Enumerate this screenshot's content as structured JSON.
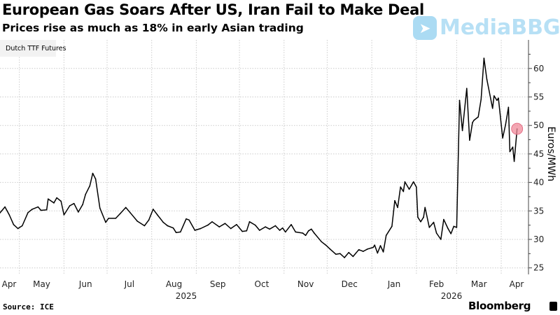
{
  "header": {
    "title": "European Gas Soars After US, Iran Fail to Make Deal",
    "subtitle": "Prices rise as much as 18% in early Asian trading"
  },
  "watermark": {
    "text": "MediaBBG",
    "icon": "telegram-plane-icon"
  },
  "footer": {
    "source": "Source: ICE",
    "brand": "Bloomberg"
  },
  "colors": {
    "line": "#000000",
    "highlight": "#f08a9a",
    "grid": "#cccccc",
    "legend_bg": "#f2f2f2"
  },
  "chart_data": {
    "type": "line",
    "title": "European Gas Soars After US, Iran Fail to Make Deal",
    "subtitle": "Prices rise as much as 18% in early Asian trading",
    "ylabel": "Euros/MWh",
    "xlabel": "",
    "ylim": [
      23,
      64
    ],
    "y_ticks": [
      25,
      30,
      35,
      40,
      45,
      50,
      55,
      60
    ],
    "y_axis_side": "right",
    "grid": true,
    "legend_placement": "top-left",
    "x_ticks": [
      "Apr",
      "May",
      "Jun",
      "Jul",
      "Aug",
      "Sep",
      "Oct",
      "Nov",
      "Dec",
      "Jan",
      "Feb",
      "Mar",
      "Apr"
    ],
    "x_years": [
      "2025",
      "2026"
    ],
    "highlight_point": {
      "date": "2026-04-12",
      "value": 49.4
    },
    "series": [
      {
        "name": "Dutch TTF Futures",
        "points": [
          [
            "2025-04-17",
            34.5
          ],
          [
            "2025-04-21",
            35.7
          ],
          [
            "2025-04-24",
            34.3
          ],
          [
            "2025-04-27",
            32.6
          ],
          [
            "2025-04-30",
            31.9
          ],
          [
            "2025-05-03",
            32.4
          ],
          [
            "2025-05-07",
            34.7
          ],
          [
            "2025-05-10",
            35.3
          ],
          [
            "2025-05-14",
            35.7
          ],
          [
            "2025-05-16",
            35.1
          ],
          [
            "2025-05-20",
            35.2
          ],
          [
            "2025-05-21",
            37.1
          ],
          [
            "2025-05-25",
            36.4
          ],
          [
            "2025-05-27",
            37.3
          ],
          [
            "2025-05-30",
            36.7
          ],
          [
            "2025-06-01",
            34.3
          ],
          [
            "2025-06-05",
            35.9
          ],
          [
            "2025-06-08",
            36.3
          ],
          [
            "2025-06-11",
            34.8
          ],
          [
            "2025-06-14",
            36.1
          ],
          [
            "2025-06-16",
            37.9
          ],
          [
            "2025-06-19",
            39.4
          ],
          [
            "2025-06-21",
            41.6
          ],
          [
            "2025-06-23",
            40.6
          ],
          [
            "2025-06-26",
            35.5
          ],
          [
            "2025-06-30",
            33.0
          ],
          [
            "2025-07-02",
            33.7
          ],
          [
            "2025-07-07",
            33.7
          ],
          [
            "2025-07-10",
            34.5
          ],
          [
            "2025-07-14",
            35.6
          ],
          [
            "2025-07-17",
            34.7
          ],
          [
            "2025-07-22",
            33.2
          ],
          [
            "2025-07-27",
            32.4
          ],
          [
            "2025-07-30",
            33.4
          ],
          [
            "2025-08-02",
            35.3
          ],
          [
            "2025-08-05",
            34.3
          ],
          [
            "2025-08-09",
            33.0
          ],
          [
            "2025-08-12",
            32.4
          ],
          [
            "2025-08-16",
            32.0
          ],
          [
            "2025-08-18",
            31.2
          ],
          [
            "2025-08-21",
            31.3
          ],
          [
            "2025-08-25",
            33.6
          ],
          [
            "2025-08-27",
            33.4
          ],
          [
            "2025-08-31",
            31.6
          ],
          [
            "2025-09-04",
            31.9
          ],
          [
            "2025-09-09",
            32.5
          ],
          [
            "2025-09-12",
            33.1
          ],
          [
            "2025-09-17",
            32.2
          ],
          [
            "2025-09-21",
            32.8
          ],
          [
            "2025-09-25",
            31.9
          ],
          [
            "2025-09-29",
            32.6
          ],
          [
            "2025-10-03",
            31.4
          ],
          [
            "2025-10-06",
            31.5
          ],
          [
            "2025-10-08",
            33.1
          ],
          [
            "2025-10-12",
            32.5
          ],
          [
            "2025-10-15",
            31.6
          ],
          [
            "2025-10-19",
            32.2
          ],
          [
            "2025-10-22",
            31.8
          ],
          [
            "2025-10-26",
            32.4
          ],
          [
            "2025-10-29",
            31.6
          ],
          [
            "2025-10-31",
            32.0
          ],
          [
            "2025-11-02",
            31.3
          ],
          [
            "2025-11-06",
            32.6
          ],
          [
            "2025-11-09",
            31.3
          ],
          [
            "2025-11-14",
            31.1
          ],
          [
            "2025-11-16",
            30.7
          ],
          [
            "2025-11-18",
            31.5
          ],
          [
            "2025-11-20",
            31.8
          ],
          [
            "2025-11-22",
            31.1
          ],
          [
            "2025-11-27",
            29.6
          ],
          [
            "2025-11-30",
            29.0
          ],
          [
            "2025-12-03",
            28.3
          ],
          [
            "2025-12-07",
            27.4
          ],
          [
            "2025-12-10",
            27.5
          ],
          [
            "2025-12-13",
            26.8
          ],
          [
            "2025-12-16",
            27.7
          ],
          [
            "2025-12-19",
            27.0
          ],
          [
            "2025-12-23",
            28.2
          ],
          [
            "2025-12-26",
            27.9
          ],
          [
            "2025-12-29",
            28.3
          ],
          [
            "2026-01-02",
            28.6
          ],
          [
            "2026-01-03",
            29.0
          ],
          [
            "2026-01-05",
            27.6
          ],
          [
            "2026-01-07",
            28.9
          ],
          [
            "2026-01-09",
            27.8
          ],
          [
            "2026-01-11",
            30.7
          ],
          [
            "2026-01-15",
            32.3
          ],
          [
            "2026-01-17",
            36.8
          ],
          [
            "2026-01-19",
            35.6
          ],
          [
            "2026-01-21",
            39.2
          ],
          [
            "2026-01-23",
            38.4
          ],
          [
            "2026-01-24",
            40.1
          ],
          [
            "2026-01-27",
            38.8
          ],
          [
            "2026-01-30",
            40.1
          ],
          [
            "2026-02-01",
            39.2
          ],
          [
            "2026-02-02",
            33.9
          ],
          [
            "2026-02-04",
            33.1
          ],
          [
            "2026-02-06",
            33.9
          ],
          [
            "2026-02-07",
            35.6
          ],
          [
            "2026-02-10",
            32.1
          ],
          [
            "2026-02-13",
            33.0
          ],
          [
            "2026-02-15",
            31.1
          ],
          [
            "2026-02-18",
            30.0
          ],
          [
            "2026-02-20",
            33.5
          ],
          [
            "2026-02-23",
            31.9
          ],
          [
            "2026-02-25",
            31.0
          ],
          [
            "2026-02-27",
            32.3
          ],
          [
            "2026-03-01",
            32.1
          ],
          [
            "2026-03-03",
            54.4
          ],
          [
            "2026-03-05",
            49.1
          ],
          [
            "2026-03-08",
            56.5
          ],
          [
            "2026-03-10",
            47.4
          ],
          [
            "2026-03-12",
            50.5
          ],
          [
            "2026-03-13",
            50.9
          ],
          [
            "2026-03-16",
            51.5
          ],
          [
            "2026-03-18",
            54.6
          ],
          [
            "2026-03-20",
            61.8
          ],
          [
            "2026-03-22",
            58.1
          ],
          [
            "2026-03-26",
            53.0
          ],
          [
            "2026-03-27",
            55.2
          ],
          [
            "2026-03-29",
            54.4
          ],
          [
            "2026-03-30",
            54.8
          ],
          [
            "2026-04-02",
            47.8
          ],
          [
            "2026-04-04",
            50.1
          ],
          [
            "2026-04-06",
            53.2
          ],
          [
            "2026-04-07",
            45.4
          ],
          [
            "2026-04-09",
            46.2
          ],
          [
            "2026-04-10",
            43.7
          ],
          [
            "2026-04-12",
            49.4
          ]
        ]
      }
    ]
  }
}
